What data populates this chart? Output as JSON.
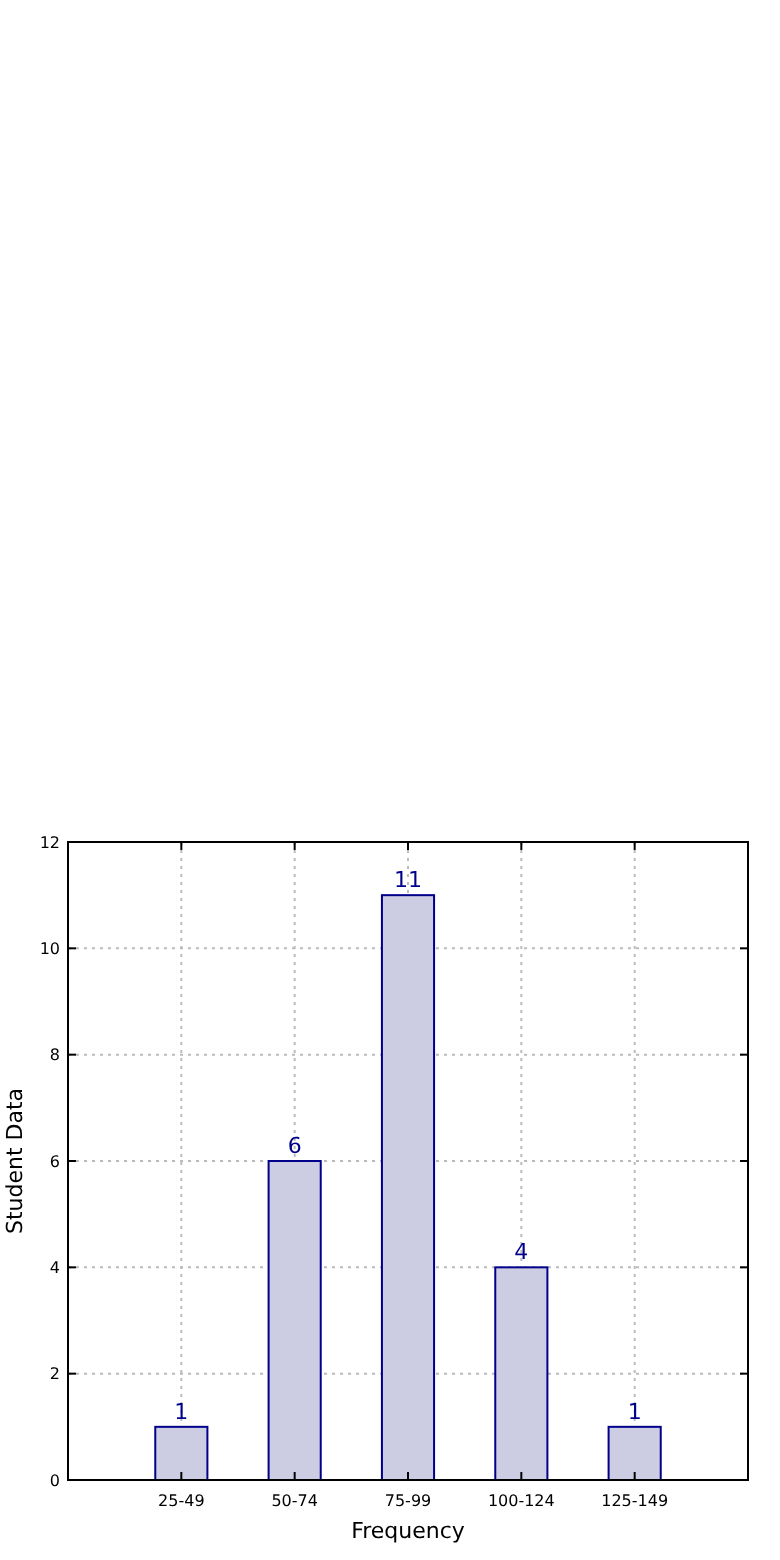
{
  "chart_data": {
    "type": "bar",
    "xlabel": "Frequency",
    "ylabel": "Student Data",
    "categories": [
      "25-49",
      "50-74",
      "75-99",
      "100-124",
      "125-149"
    ],
    "values": [
      1,
      6,
      11,
      4,
      1
    ],
    "color": "#cccce3",
    "ylim": [
      0,
      12
    ],
    "yticks": [
      0,
      2,
      4,
      6,
      8,
      10,
      12
    ],
    "grid": true,
    "data_labels": true
  }
}
